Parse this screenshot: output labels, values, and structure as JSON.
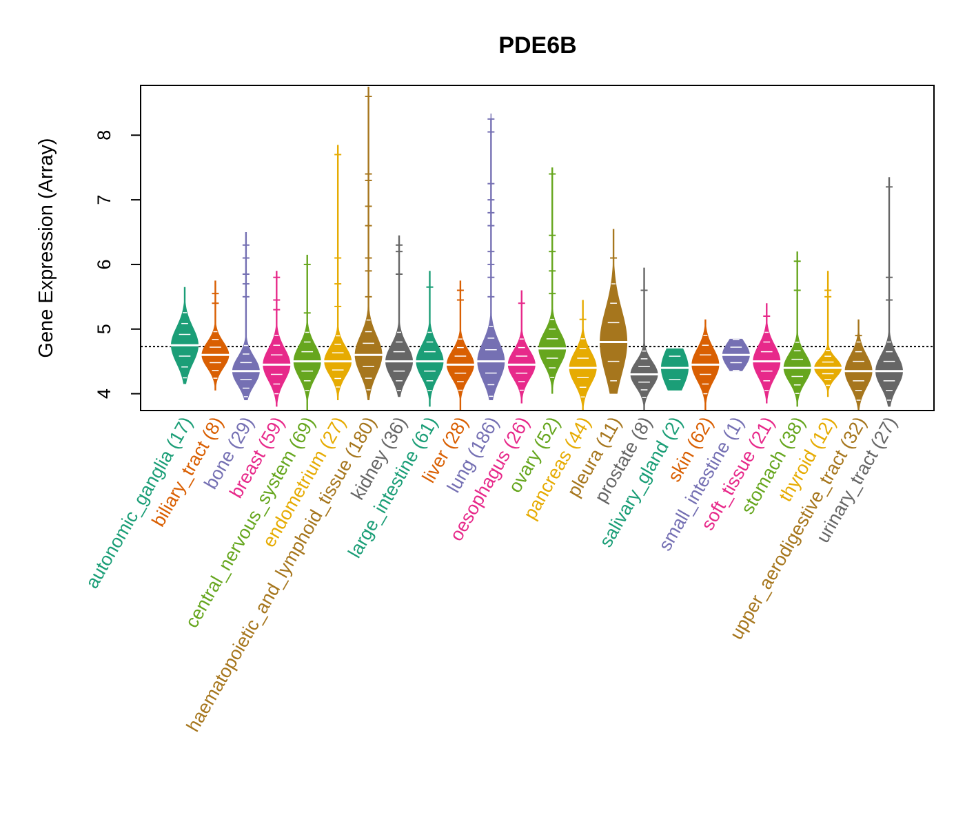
{
  "chart_data": {
    "type": "violin",
    "title": "PDE6B",
    "xlabel": "",
    "ylabel": "Gene Expression (Array)",
    "ylim": [
      3.74,
      8.77
    ],
    "yticks": [
      4,
      5,
      6,
      7,
      8
    ],
    "reference_line": 4.73,
    "palette": [
      "#1B9E77",
      "#D95F02",
      "#7570B3",
      "#E7298A",
      "#66A61E",
      "#E6AB02",
      "#A6761D",
      "#666666"
    ],
    "categories": [
      {
        "label": "autonomic_ganglia (17)",
        "median": 4.75,
        "sd": 0.28,
        "min": 4.15,
        "max": 5.65,
        "outliers": []
      },
      {
        "label": "biliary_tract (8)",
        "median": 4.6,
        "sd": 0.2,
        "min": 4.05,
        "max": 5.75,
        "outliers": [
          5.4,
          5.55
        ]
      },
      {
        "label": "bone (29)",
        "median": 4.35,
        "sd": 0.22,
        "min": 3.9,
        "max": 6.5,
        "outliers": [
          5.5,
          5.7,
          5.85,
          6.1,
          6.3
        ]
      },
      {
        "label": "breast (59)",
        "median": 4.45,
        "sd": 0.25,
        "min": 3.8,
        "max": 5.9,
        "outliers": [
          5.3,
          5.45,
          5.8
        ]
      },
      {
        "label": "central_nervous_system (69)",
        "median": 4.5,
        "sd": 0.25,
        "min": 3.75,
        "max": 6.15,
        "outliers": [
          5.25,
          6.0
        ]
      },
      {
        "label": "endometrium (27)",
        "median": 4.5,
        "sd": 0.22,
        "min": 3.9,
        "max": 7.85,
        "outliers": [
          5.35,
          5.7,
          6.1,
          7.7
        ]
      },
      {
        "label": "haematopoietic_and_lymphoid_tissue (180)",
        "median": 4.6,
        "sd": 0.3,
        "min": 3.9,
        "max": 8.75,
        "outliers": [
          5.5,
          5.9,
          6.1,
          6.6,
          6.9,
          7.3,
          7.4,
          8.6
        ]
      },
      {
        "label": "kidney (36)",
        "median": 4.5,
        "sd": 0.25,
        "min": 3.95,
        "max": 6.45,
        "outliers": [
          5.85,
          6.2,
          6.3
        ]
      },
      {
        "label": "large_intestine (61)",
        "median": 4.5,
        "sd": 0.25,
        "min": 3.8,
        "max": 5.9,
        "outliers": [
          5.65
        ]
      },
      {
        "label": "liver (28)",
        "median": 4.45,
        "sd": 0.22,
        "min": 3.75,
        "max": 5.75,
        "outliers": [
          5.45,
          5.6
        ]
      },
      {
        "label": "lung (186)",
        "median": 4.5,
        "sd": 0.3,
        "min": 3.9,
        "max": 8.25,
        "outliers": [
          5.5,
          5.8,
          6.0,
          6.2,
          6.6,
          6.8,
          7.0,
          7.25,
          8.05,
          8.25
        ]
      },
      {
        "label": "oesophagus (26)",
        "median": 4.45,
        "sd": 0.22,
        "min": 3.85,
        "max": 5.6,
        "outliers": [
          5.4
        ]
      },
      {
        "label": "ovary (52)",
        "median": 4.7,
        "sd": 0.25,
        "min": 4.0,
        "max": 7.5,
        "outliers": [
          5.55,
          5.9,
          6.2,
          6.45,
          7.4
        ]
      },
      {
        "label": "pancreas (44)",
        "median": 4.4,
        "sd": 0.25,
        "min": 3.75,
        "max": 5.45,
        "outliers": [
          5.15
        ]
      },
      {
        "label": "pleura (11)",
        "median": 4.8,
        "sd": 0.5,
        "min": 4.0,
        "max": 6.55,
        "outliers": [
          5.5,
          6.1
        ]
      },
      {
        "label": "prostate (8)",
        "median": 4.3,
        "sd": 0.2,
        "min": 3.75,
        "max": 5.95,
        "outliers": [
          5.6
        ]
      },
      {
        "label": "salivary_gland (2)",
        "median": 4.4,
        "sd": 0.3,
        "min": 4.05,
        "max": 4.7,
        "outliers": []
      },
      {
        "label": "skin (62)",
        "median": 4.45,
        "sd": 0.25,
        "min": 3.75,
        "max": 5.15,
        "outliers": []
      },
      {
        "label": "small_intestine (1)",
        "median": 4.6,
        "sd": 0.2,
        "min": 4.35,
        "max": 4.85,
        "outliers": []
      },
      {
        "label": "soft_tissue (21)",
        "median": 4.5,
        "sd": 0.25,
        "min": 3.85,
        "max": 5.4,
        "outliers": [
          5.2
        ]
      },
      {
        "label": "stomach (38)",
        "median": 4.4,
        "sd": 0.22,
        "min": 3.8,
        "max": 6.2,
        "outliers": [
          5.6,
          6.05
        ]
      },
      {
        "label": "thyroid (12)",
        "median": 4.4,
        "sd": 0.15,
        "min": 3.95,
        "max": 5.9,
        "outliers": [
          5.5,
          5.6
        ]
      },
      {
        "label": "upper_aerodigestive_tract (32)",
        "median": 4.35,
        "sd": 0.25,
        "min": 3.75,
        "max": 5.15,
        "outliers": [
          4.9
        ]
      },
      {
        "label": "urinary_tract (27)",
        "median": 4.35,
        "sd": 0.25,
        "min": 3.8,
        "max": 7.35,
        "outliers": [
          5.45,
          5.8,
          7.2
        ]
      }
    ]
  }
}
